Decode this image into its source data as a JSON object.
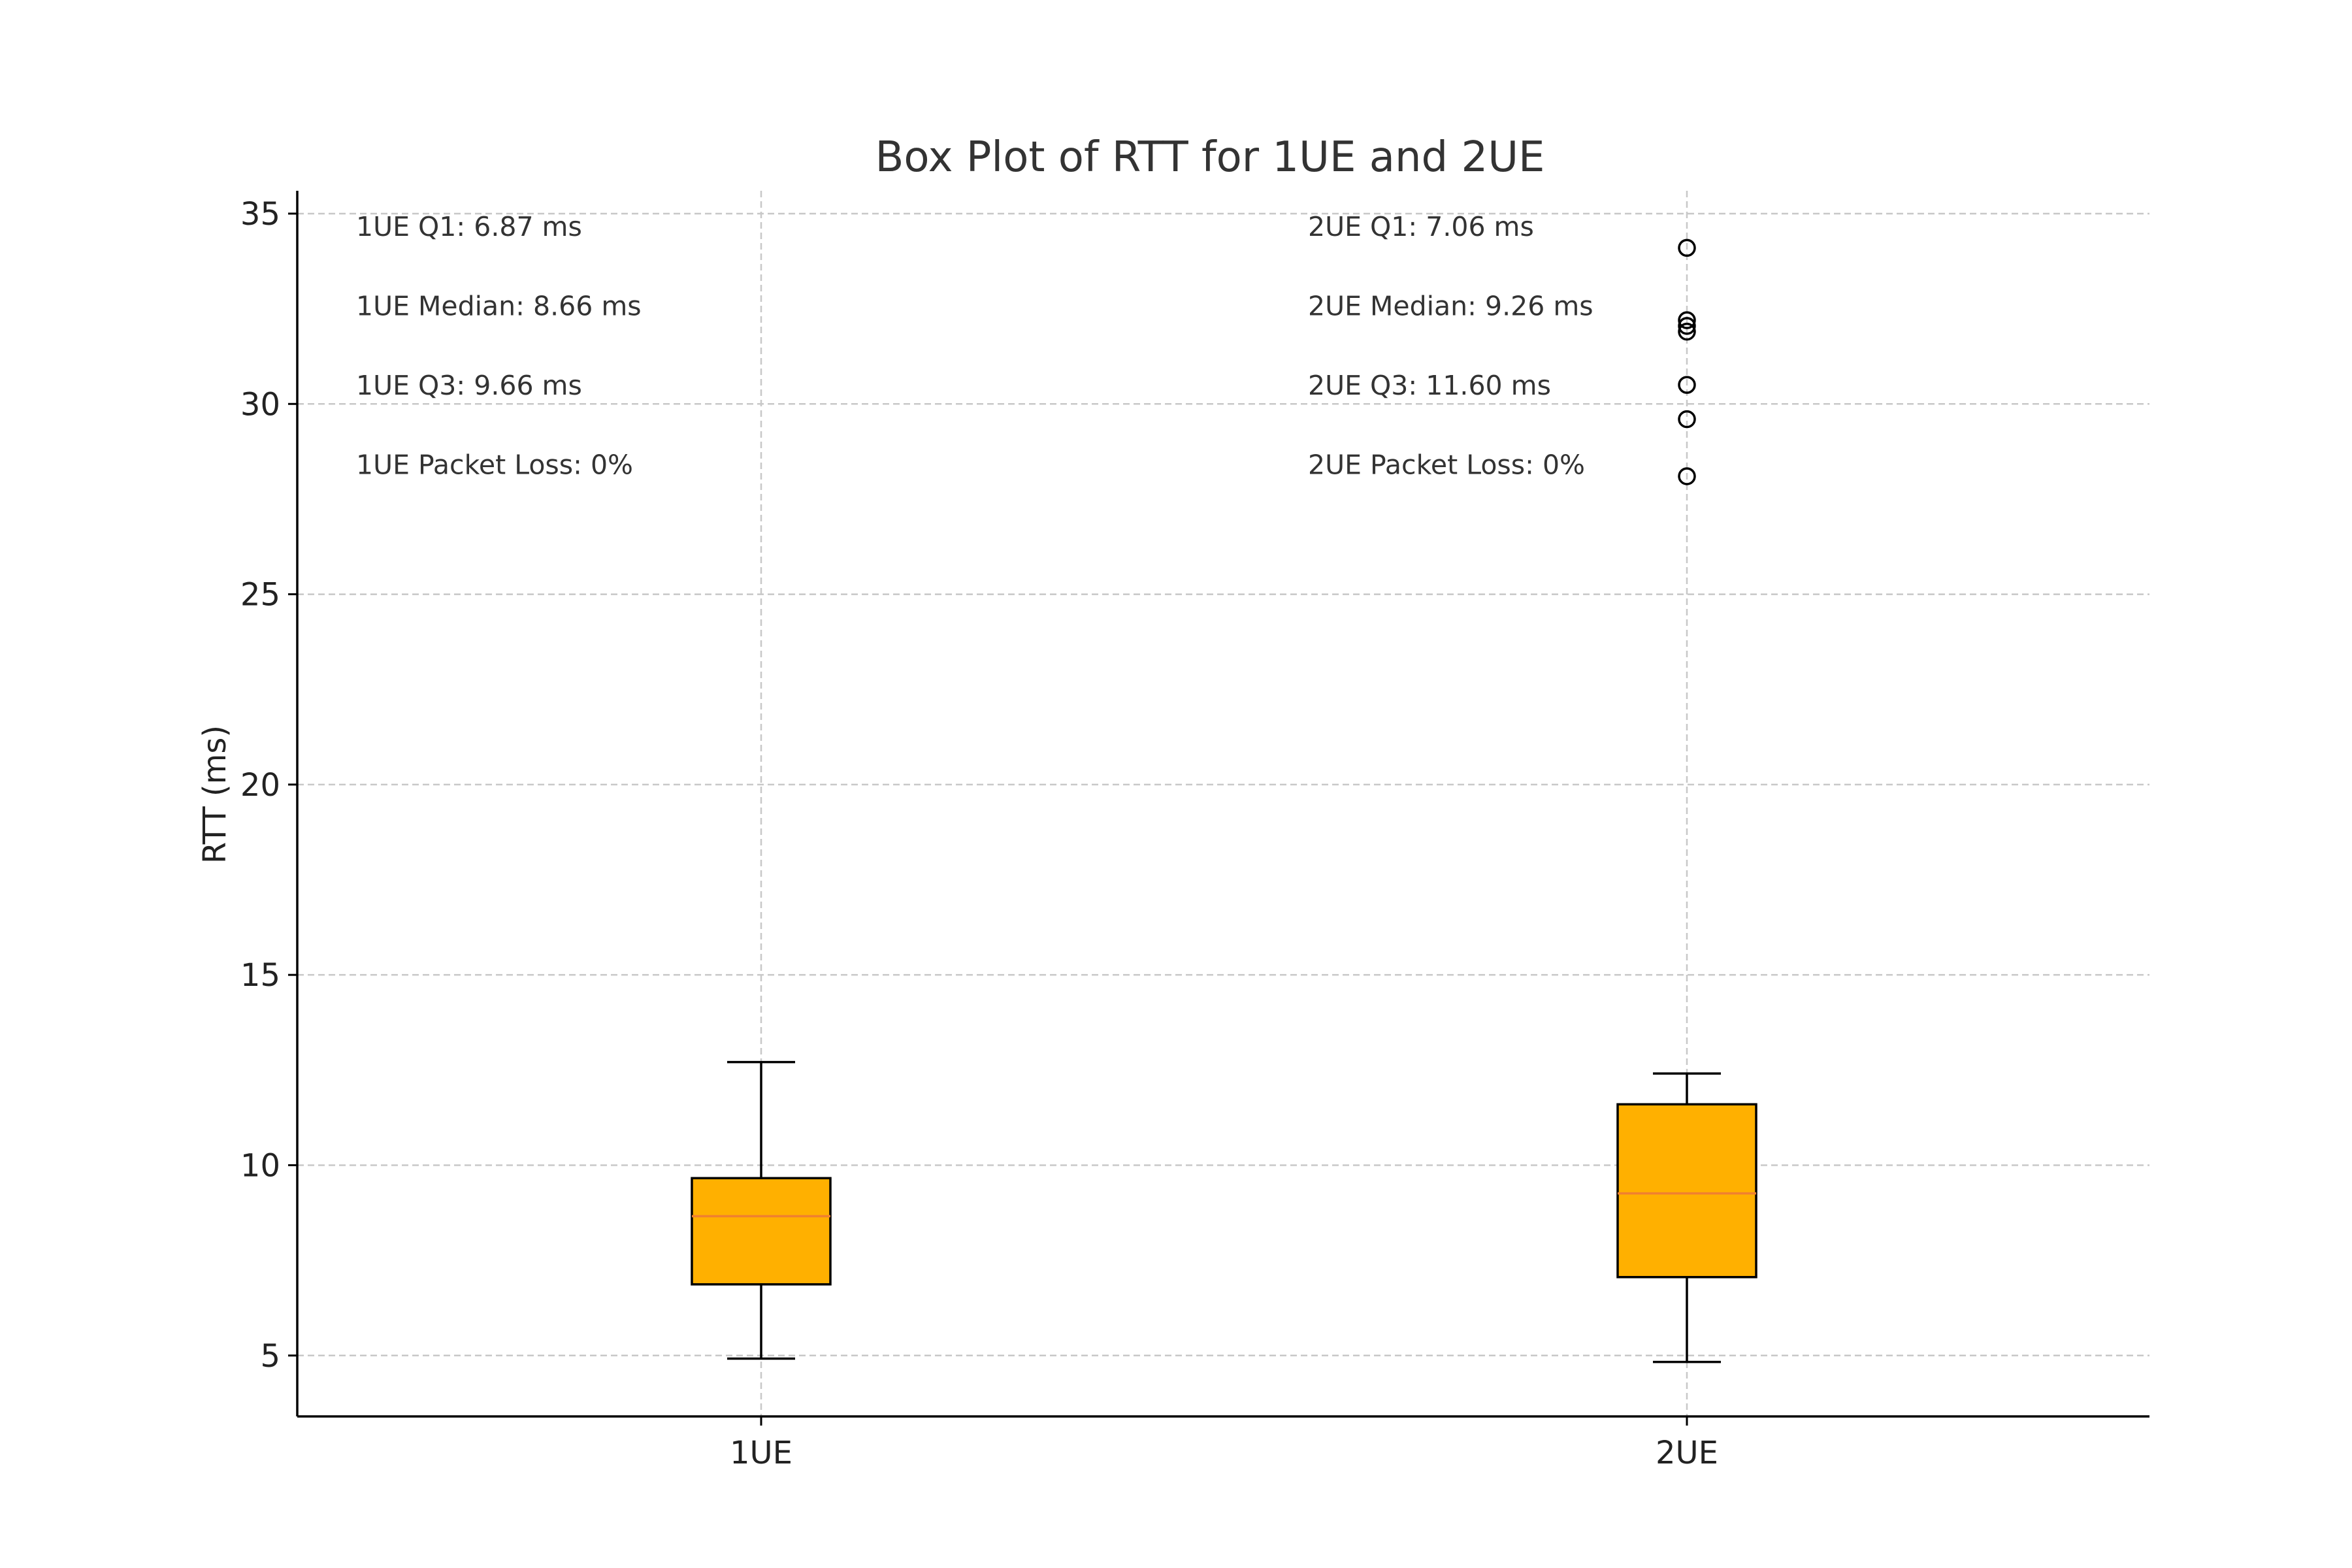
{
  "chart_data": {
    "type": "box",
    "title": "Box Plot of RTT for 1UE and 2UE",
    "xlabel": "",
    "ylabel": "RTT (ms)",
    "ylim": [
      3.4,
      35.6
    ],
    "yticks": [
      5,
      10,
      15,
      20,
      25,
      30,
      35
    ],
    "grid": true,
    "categories": [
      "1UE",
      "2UE"
    ],
    "boxes": [
      {
        "category": "1UE",
        "whisker_low": 4.92,
        "q1": 6.87,
        "median": 8.66,
        "q3": 9.66,
        "whisker_high": 12.71,
        "outliers": []
      },
      {
        "category": "2UE",
        "whisker_low": 4.83,
        "q1": 7.06,
        "median": 9.26,
        "q3": 11.6,
        "whisker_high": 12.41,
        "outliers": [
          34.1,
          32.2,
          32.05,
          31.9,
          30.5,
          29.6,
          28.1
        ]
      }
    ],
    "annotations": [
      {
        "group": "1UE",
        "lines": [
          "1UE Q1: 6.87 ms",
          "1UE Median: 8.66 ms",
          "1UE Q3: 9.66 ms",
          "1UE Packet Loss: 0%"
        ]
      },
      {
        "group": "2UE",
        "lines": [
          "2UE Q1: 7.06 ms",
          "2UE Median: 9.26 ms",
          "2UE Q3: 11.60 ms",
          "2UE Packet Loss: 0%"
        ]
      }
    ],
    "colors": {
      "box_fill": "#FFB000",
      "median_line": "#F08030",
      "edge": "#000000",
      "grid": "#c8c8c8",
      "text": "#333333"
    }
  }
}
